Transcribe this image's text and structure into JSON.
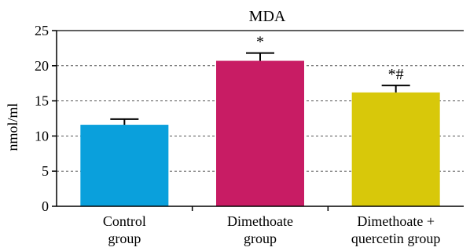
{
  "chart_data": {
    "type": "bar",
    "title": "MDA",
    "ylabel": "nmol/ml",
    "xlabel": "",
    "ylim": [
      0,
      25
    ],
    "yticks": [
      0,
      5,
      10,
      15,
      20,
      25
    ],
    "grid": "horizontal dashed",
    "categories": [
      [
        "Control",
        "group"
      ],
      [
        "Dimethoate",
        "group"
      ],
      [
        "Dimethoate +",
        "quercetin group"
      ]
    ],
    "values": [
      11.6,
      20.7,
      16.2
    ],
    "errors": [
      0.8,
      1.1,
      1.0
    ],
    "annotations": [
      "",
      "*",
      "*#"
    ],
    "colors": [
      "#0aa0dc",
      "#c81c64",
      "#d8c80a"
    ]
  }
}
